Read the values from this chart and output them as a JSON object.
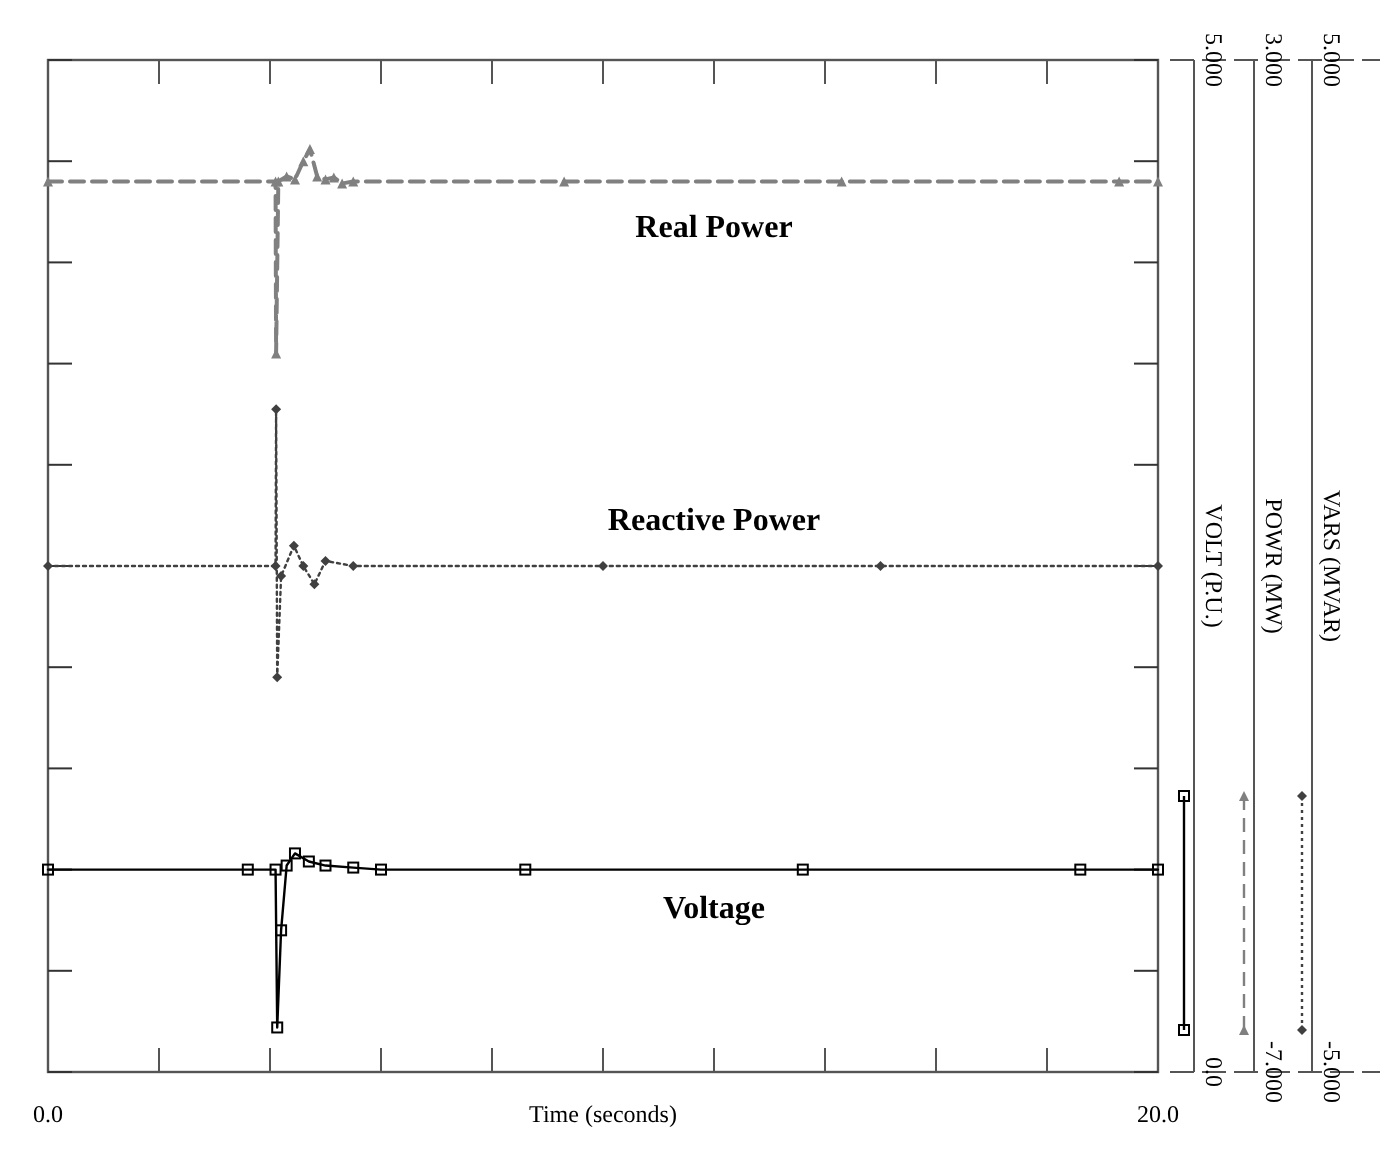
{
  "chart_data": {
    "type": "line",
    "xlabel": "Time (seconds)",
    "ylabel": "VOLT (P.U.)",
    "y2label": "POWR (MW)",
    "y3label": "VARS (MVAR)",
    "xlim": [
      0,
      20
    ],
    "xticks": [
      {
        "value": 0,
        "label": "0.0"
      },
      {
        "value": 2,
        "label": null
      },
      {
        "value": 4,
        "label": null
      },
      {
        "value": 6,
        "label": null
      },
      {
        "value": 8,
        "label": null
      },
      {
        "value": 10,
        "label": null
      },
      {
        "value": 12,
        "label": null
      },
      {
        "value": 14,
        "label": null
      },
      {
        "value": 16,
        "label": null
      },
      {
        "value": 18,
        "label": null
      },
      {
        "value": 20,
        "label": "20.0"
      }
    ],
    "ylim": [
      0,
      5
    ],
    "yticks": [
      {
        "value": 0,
        "label": "0.0"
      },
      {
        "value": 0.5,
        "label": null
      },
      {
        "value": 1,
        "label": null
      },
      {
        "value": 1.5,
        "label": null
      },
      {
        "value": 2,
        "label": null
      },
      {
        "value": 2.5,
        "label": null
      },
      {
        "value": 3,
        "label": null
      },
      {
        "value": 3.5,
        "label": null
      },
      {
        "value": 4,
        "label": null
      },
      {
        "value": 4.5,
        "label": null
      },
      {
        "value": 5,
        "label": "5.000"
      }
    ],
    "y2lim": [
      -7,
      3
    ],
    "y2ticks": [
      {
        "value": -7,
        "label": "-7.000"
      },
      {
        "value": 3,
        "label": "3.000"
      }
    ],
    "y3lim": [
      -5,
      5
    ],
    "y3ticks": [
      {
        "value": -5,
        "label": "-5.000"
      },
      {
        "value": 5,
        "label": "5.000"
      }
    ],
    "series": [
      {
        "name": "Real Power",
        "axis": "y2",
        "color": "#808080",
        "line_style": "dashed",
        "marker": "triangle",
        "x": [
          0,
          4.1,
          4.11,
          4.15,
          4.3,
          4.45,
          4.6,
          4.72,
          4.85,
          5.0,
          5.15,
          5.3,
          5.5,
          9.3,
          14.3,
          19.3,
          20
        ],
        "values": [
          1.8,
          1.8,
          0.1,
          1.8,
          1.85,
          1.82,
          2.0,
          2.12,
          1.85,
          1.82,
          1.84,
          1.78,
          1.8,
          1.8,
          1.8,
          1.8,
          1.8
        ]
      },
      {
        "name": "Reactive Power",
        "axis": "y3",
        "color": "#404040",
        "line_style": "dotted",
        "marker": "diamond",
        "x": [
          0,
          4.1,
          4.11,
          4.13,
          4.2,
          4.43,
          4.6,
          4.8,
          5.0,
          5.5,
          10,
          15,
          20
        ],
        "values": [
          0,
          0,
          1.55,
          -1.1,
          -0.1,
          0.2,
          0.0,
          -0.18,
          0.05,
          0,
          0,
          0,
          0
        ]
      },
      {
        "name": "Voltage",
        "axis": "y",
        "color": "#000000",
        "line_style": "solid",
        "marker": "square",
        "x": [
          0,
          3.6,
          4.1,
          4.13,
          4.2,
          4.3,
          4.45,
          4.7,
          5.0,
          5.5,
          6.0,
          8.6,
          13.6,
          18.6,
          20
        ],
        "values": [
          1.0,
          1.0,
          1.0,
          0.22,
          0.7,
          1.02,
          1.08,
          1.04,
          1.02,
          1.01,
          1.0,
          1.0,
          1.0,
          1.0,
          1.0
        ]
      }
    ]
  }
}
